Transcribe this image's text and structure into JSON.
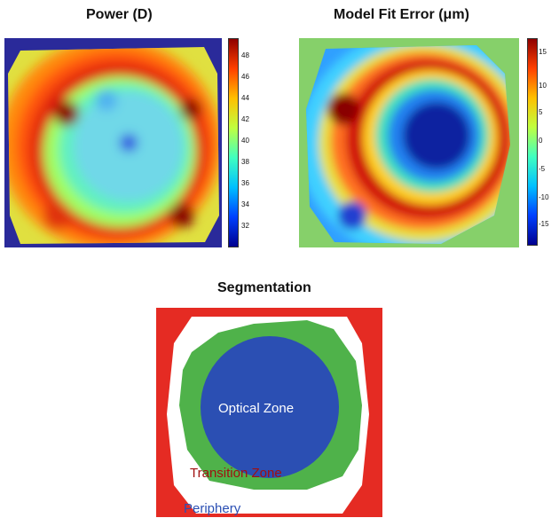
{
  "panels": {
    "power": {
      "title": "Power (D)",
      "colorbar_ticks": [
        "48",
        "46",
        "44",
        "42",
        "40",
        "38",
        "36",
        "34",
        "32"
      ]
    },
    "fit_error": {
      "title": "Model Fit Error (μm)",
      "colorbar_ticks": [
        "15",
        "10",
        "5",
        "0",
        "-5",
        "-10",
        "-15"
      ]
    },
    "segmentation": {
      "title": "Segmentation",
      "zones": {
        "optical": "Optical Zone",
        "transition": "Transition Zone",
        "periphery": "Periphery"
      },
      "colors": {
        "optical": "#2b4fb3",
        "transition": "#4fb24a",
        "periphery": "#e52b23",
        "background": "#ffffff"
      }
    }
  },
  "colormap": [
    "#00008f",
    "#0040ff",
    "#00c0ff",
    "#40ffc0",
    "#c0ff40",
    "#ffc000",
    "#ff4000",
    "#8f0000"
  ]
}
